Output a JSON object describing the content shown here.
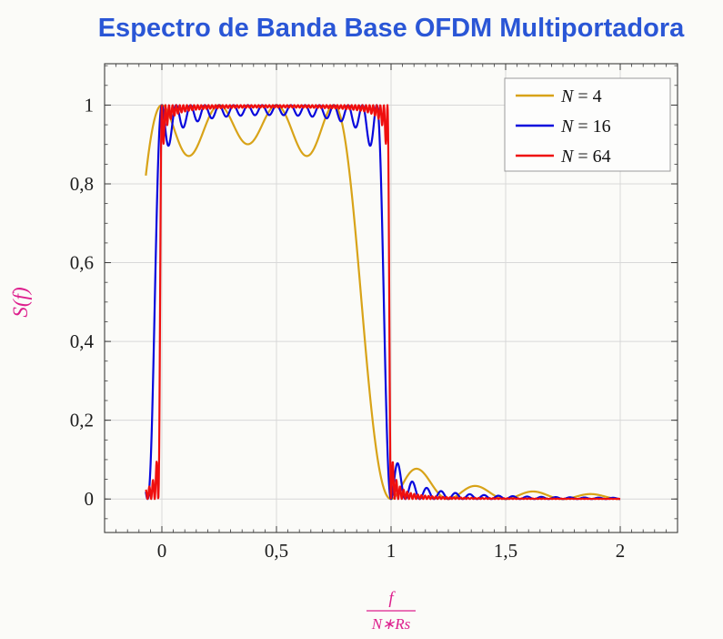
{
  "page": {
    "background": "#fbfbf8"
  },
  "chart_data": {
    "type": "line",
    "title": "Espectro de Banda Base OFDM Multiportadora",
    "title_color": "#2a56d6",
    "ylabel": "S(f)",
    "xlabel_numerator": "f",
    "xlabel_denominator": "N∗Rs",
    "axis_label_color": "#dd1f8d",
    "xlim": [
      -0.25,
      2.25
    ],
    "ylim": [
      -0.085,
      1.105
    ],
    "x_ticks": [
      {
        "v": 0,
        "label": "0"
      },
      {
        "v": 0.5,
        "label": "0,5"
      },
      {
        "v": 1,
        "label": "1"
      },
      {
        "v": 1.5,
        "label": "1,5"
      },
      {
        "v": 2,
        "label": "2"
      }
    ],
    "y_ticks": [
      {
        "v": 0,
        "label": "0"
      },
      {
        "v": 0.2,
        "label": "0,2"
      },
      {
        "v": 0.4,
        "label": "0,4"
      },
      {
        "v": 0.6,
        "label": "0,6"
      },
      {
        "v": 0.8,
        "label": "0,8"
      },
      {
        "v": 1,
        "label": "1"
      }
    ],
    "x_minor_step": 0.05,
    "y_minor_step": 0.05,
    "grid": true,
    "grid_color": "#d8d8d8",
    "axis_color": "#3c3c3c",
    "tick_label_color": "#1c1c1c",
    "legend": {
      "position": "top-right",
      "border_color": "#9b9b9b",
      "fill": "#fdfdfc"
    },
    "curve_model": "S_N(x) = sum_{k=0}^{N-1} sinc^2(N*x - k), sinc(u)=sin(pi*u)/(pi*u); flat ~1 in band 0..1 with ripple (deepest for N=4 ~0.87), steep edges sharpening as N grows, zero at x=1, decaying sidelobes for x>1",
    "domain": [
      -0.07,
      2.0
    ],
    "samples": 1500,
    "series": [
      {
        "label": "N = 4",
        "N": 4,
        "color": "#d8a318",
        "width": 2.2
      },
      {
        "label": "N = 16",
        "N": 16,
        "color": "#0808dd",
        "width": 2.2
      },
      {
        "label": "N = 64",
        "N": 64,
        "color": "#ef0f0f",
        "width": 2.2
      }
    ]
  }
}
